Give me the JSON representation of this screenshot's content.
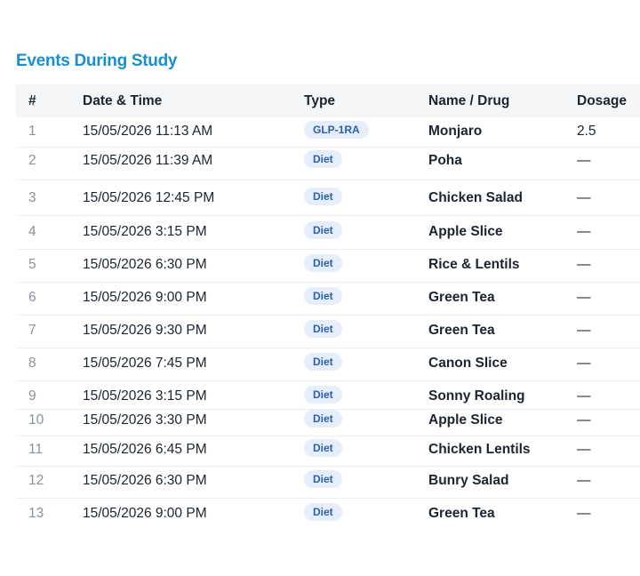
{
  "header": {
    "title": "Events During Study"
  },
  "table": {
    "columns": [
      "#",
      "Date & Time",
      "Type",
      "Name / Drug",
      "Dosage"
    ],
    "rows": [
      [
        "1",
        "15/05/2026 11:13 AM",
        "GLP-1RA",
        "Monjaro",
        "2.5"
      ],
      [
        "2",
        "15/05/2026 11:39 AM",
        "Diet",
        "Poha",
        "—"
      ],
      [
        "3",
        "15/05/2026 12:45 PM",
        "Diet",
        "Chicken Salad",
        "—"
      ],
      [
        "4",
        "15/05/2026 3:15 PM",
        "Diet",
        "Apple Slice",
        "—"
      ],
      [
        "5",
        "15/05/2026 6:30 PM",
        "Diet",
        "Rice & Lentils",
        "—"
      ],
      [
        "6",
        "15/05/2026 9:00 PM",
        "Diet",
        "Green Tea",
        "—"
      ],
      [
        "7",
        "15/05/2026 9:30 PM",
        "Diet",
        "Green Tea",
        "—"
      ],
      [
        "8",
        "15/05/2026 7:45 PM",
        "Diet",
        "Canon Slice",
        "—"
      ],
      [
        "9",
        "15/05/2026 3:15 PM",
        "Diet",
        "Sonny Roaling",
        "—"
      ],
      [
        "10",
        "15/05/2026 3:30 PM",
        "Diet",
        "Apple Slice",
        "—"
      ],
      [
        "11",
        "15/05/2026 6:45 PM",
        "Diet",
        "Chicken Lentils",
        "—"
      ],
      [
        "12",
        "15/05/2026 6:30 PM",
        "Diet",
        "Bunry Salad",
        "—"
      ],
      [
        "13",
        "15/05/2026 9:00 PM",
        "Diet",
        "Green Tea",
        "—"
      ]
    ]
  }
}
